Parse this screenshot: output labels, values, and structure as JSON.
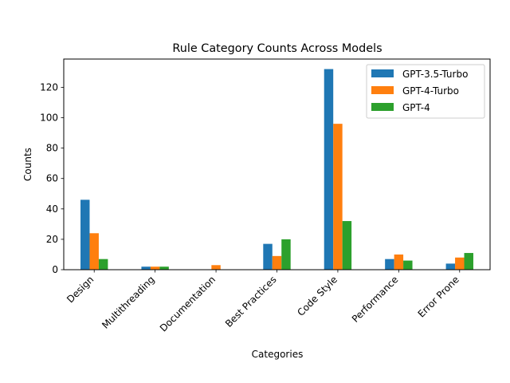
{
  "chart_data": {
    "type": "bar",
    "title": "Rule Category Counts Across Models",
    "xlabel": "Categories",
    "ylabel": "Counts",
    "categories": [
      "Design",
      "Multithreading",
      "Documentation",
      "Best Practices",
      "Code Style",
      "Performance",
      "Error Prone"
    ],
    "series": [
      {
        "name": "GPT-3.5-Turbo",
        "color": "#1f77b4",
        "values": [
          46,
          2,
          0,
          17,
          132,
          7,
          4
        ]
      },
      {
        "name": "GPT-4-Turbo",
        "color": "#ff7f0e",
        "values": [
          24,
          2,
          3,
          9,
          96,
          10,
          8
        ]
      },
      {
        "name": "GPT-4",
        "color": "#2ca02c",
        "values": [
          7,
          2,
          0,
          20,
          32,
          6,
          11
        ]
      }
    ],
    "ylim": [
      0,
      138.6
    ],
    "yticks": [
      0,
      20,
      40,
      60,
      80,
      100,
      120
    ],
    "grid": false,
    "legend": "top-right"
  }
}
